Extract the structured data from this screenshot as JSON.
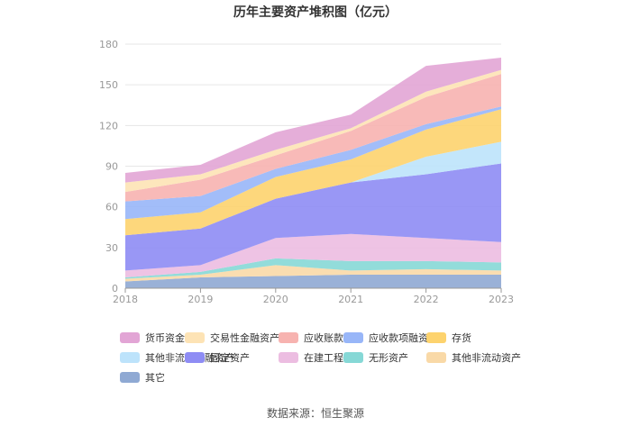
{
  "chart_data": {
    "type": "area",
    "stacked": true,
    "title": "历年主要资产堆积图（亿元）",
    "xlabel": "",
    "ylabel": "",
    "x": [
      "2018",
      "2019",
      "2020",
      "2021",
      "2022",
      "2023"
    ],
    "yticks": [
      0,
      30,
      60,
      90,
      120,
      150,
      180
    ],
    "ylim": [
      0,
      180
    ],
    "grid": true,
    "legend_position": "bottom",
    "series": [
      {
        "name": "其它",
        "color": "#8fa9d3",
        "values": [
          5,
          8,
          9,
          10,
          10,
          10
        ]
      },
      {
        "name": "其他非流动资产",
        "color": "#f9d9a7",
        "values": [
          2,
          2,
          8,
          3,
          4,
          3
        ]
      },
      {
        "name": "无形资产",
        "color": "#86d8d6",
        "values": [
          1,
          2,
          5,
          7,
          6,
          6
        ]
      },
      {
        "name": "在建工程",
        "color": "#ecbde1",
        "values": [
          5,
          5,
          15,
          20,
          17,
          15
        ]
      },
      {
        "name": "固定资产",
        "color": "#8e8cf4",
        "values": [
          26,
          27,
          29,
          38,
          47,
          58
        ]
      },
      {
        "name": "其他非流动金融资产",
        "color": "#bde3fb",
        "values": [
          0,
          0,
          0,
          0,
          13,
          16
        ]
      },
      {
        "name": "存货",
        "color": "#fdd36e",
        "values": [
          12,
          12,
          16,
          17,
          20,
          24
        ]
      },
      {
        "name": "应收款项融资",
        "color": "#98b6f8",
        "values": [
          13,
          12,
          6,
          7,
          4,
          2
        ]
      },
      {
        "name": "应收账款",
        "color": "#f7b3b0",
        "values": [
          7,
          12,
          10,
          14,
          20,
          24
        ]
      },
      {
        "name": "交易性金融资产",
        "color": "#fde3b5",
        "values": [
          7,
          4,
          4,
          2,
          4,
          3
        ]
      },
      {
        "name": "货币资金",
        "color": "#e2a5d5",
        "values": [
          7,
          7,
          13,
          10,
          19,
          9
        ]
      }
    ],
    "legend_order": [
      "货币资金",
      "交易性金融资产",
      "应收账款",
      "应收款项融资",
      "存货",
      "其他非流动金融资产",
      "固定资产",
      "在建工程",
      "无形资产",
      "其他非流动资产",
      "其它"
    ]
  },
  "source_text": "数据来源：恒生聚源"
}
